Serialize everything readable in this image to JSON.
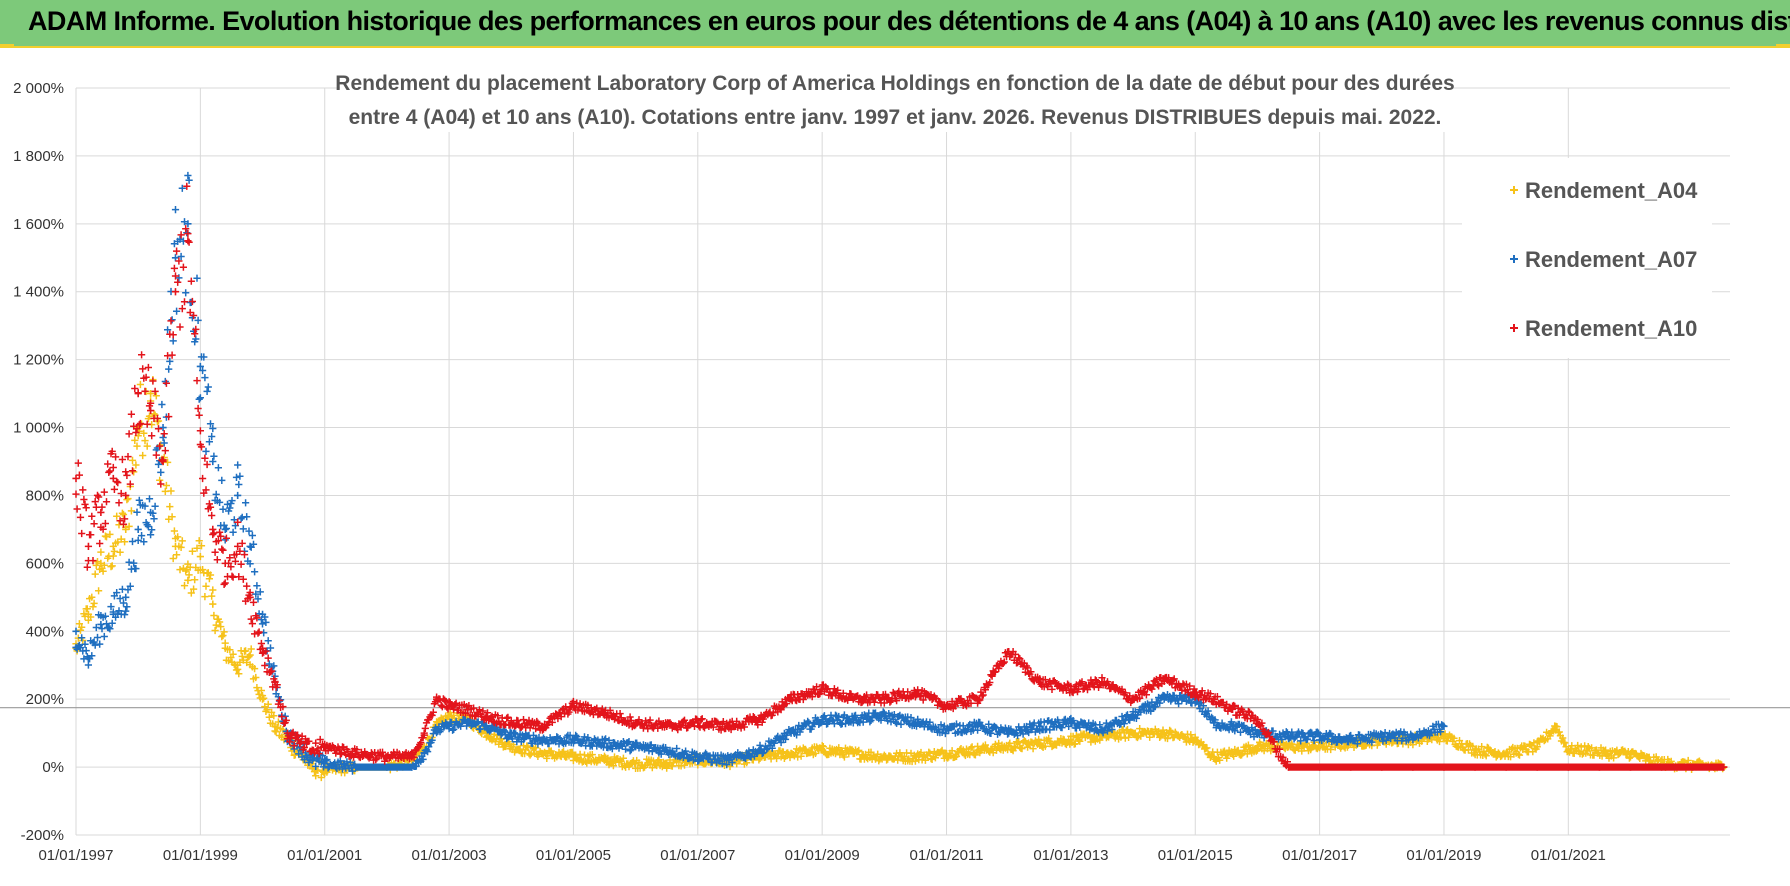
{
  "header": {
    "title": "ADAM Informe. Evolution historique des performances en euros pour des détentions de 4 ans (A04) à 10 ans (A10) avec les revenus connus distribués"
  },
  "colors": {
    "header_bg": "#7dc97a",
    "accent": "#f2cf2e",
    "A04": "#f6c21a",
    "A07": "#1f6fc0",
    "A10": "#e3141b",
    "grid": "#d9d9d9"
  },
  "chart_data": {
    "type": "scatter",
    "title_lines": [
      "Rendement du placement Laboratory Corp of America Holdings en fonction de la date de début pour des durées",
      "entre 4 (A04) et 10 ans (A10). Cotations entre janv. 1997 et janv. 2026. Revenus DISTRIBUES depuis mai. 2022."
    ],
    "xlabel": "",
    "ylabel": "",
    "x_range": [
      1997.0,
      2023.6
    ],
    "ylim": [
      -200,
      2000
    ],
    "y_ticks": [
      {
        "value": 2000,
        "label": "2 000%"
      },
      {
        "value": 1800,
        "label": "1 800%"
      },
      {
        "value": 1600,
        "label": "1 600%"
      },
      {
        "value": 1400,
        "label": "1 400%"
      },
      {
        "value": 1200,
        "label": "1 200%"
      },
      {
        "value": 1000,
        "label": "1 000%"
      },
      {
        "value": 800,
        "label": "800%"
      },
      {
        "value": 600,
        "label": "600%"
      },
      {
        "value": 400,
        "label": "400%"
      },
      {
        "value": 200,
        "label": "200%"
      },
      {
        "value": 0,
        "label": "0%"
      },
      {
        "value": -200,
        "label": "-200%"
      }
    ],
    "x_ticks": [
      {
        "value": 1997,
        "label": "01/01/1997"
      },
      {
        "value": 1999,
        "label": "01/01/1999"
      },
      {
        "value": 2001,
        "label": "01/01/2001"
      },
      {
        "value": 2003,
        "label": "01/01/2003"
      },
      {
        "value": 2005,
        "label": "01/01/2005"
      },
      {
        "value": 2007,
        "label": "01/01/2007"
      },
      {
        "value": 2009,
        "label": "01/01/2009"
      },
      {
        "value": 2011,
        "label": "01/01/2011"
      },
      {
        "value": 2013,
        "label": "01/01/2013"
      },
      {
        "value": 2015,
        "label": "01/01/2015"
      },
      {
        "value": 2017,
        "label": "01/01/2017"
      },
      {
        "value": 2019,
        "label": "01/01/2019"
      },
      {
        "value": 2021,
        "label": "01/01/2021"
      }
    ],
    "reference_line": 175,
    "grid": true,
    "legend": "top-right",
    "series": [
      {
        "name": "Rendement_A04",
        "color": "#f6c21a",
        "x": [
          1997.0,
          1997.2,
          1997.4,
          1997.6,
          1997.8,
          1998.0,
          1998.2,
          1998.4,
          1998.6,
          1998.8,
          1999.0,
          1999.2,
          1999.4,
          1999.6,
          1999.8,
          2000.0,
          2000.2,
          2000.4,
          2000.6,
          2000.8,
          2001.0,
          2001.5,
          2002.0,
          2002.4,
          2002.6,
          2002.8,
          2003.0,
          2003.3,
          2003.6,
          2004.0,
          2004.5,
          2005.0,
          2005.5,
          2006.0,
          2006.5,
          2007.0,
          2007.5,
          2008.0,
          2008.5,
          2009.0,
          2009.5,
          2010.0,
          2010.5,
          2011.0,
          2011.5,
          2012.0,
          2012.5,
          2013.0,
          2013.5,
          2014.0,
          2014.5,
          2015.0,
          2015.3,
          2015.6,
          2016.0,
          2016.5,
          2017.0,
          2017.5,
          2018.0,
          2018.5,
          2019.0,
          2019.5,
          2020.0,
          2020.5,
          2020.8,
          2021.0,
          2021.3,
          2021.6,
          2022.0,
          2022.3,
          2022.6,
          2023.0,
          2023.5
        ],
        "values": [
          350,
          450,
          600,
          650,
          700,
          1000,
          1100,
          900,
          650,
          550,
          620,
          480,
          350,
          300,
          330,
          200,
          120,
          80,
          40,
          0,
          -10,
          0,
          0,
          20,
          60,
          120,
          150,
          140,
          100,
          60,
          40,
          30,
          20,
          10,
          10,
          20,
          15,
          30,
          40,
          50,
          40,
          30,
          30,
          40,
          50,
          60,
          70,
          80,
          90,
          100,
          100,
          80,
          30,
          40,
          60,
          60,
          60,
          70,
          80,
          80,
          90,
          50,
          40,
          60,
          120,
          50,
          50,
          40,
          40,
          20,
          10,
          5,
          0
        ]
      },
      {
        "name": "Rendement_A07",
        "color": "#1f6fc0",
        "x": [
          1997.0,
          1997.2,
          1997.4,
          1997.6,
          1997.8,
          1998.0,
          1998.2,
          1998.4,
          1998.6,
          1998.8,
          1999.0,
          1999.2,
          1999.4,
          1999.6,
          1999.8,
          2000.0,
          2000.2,
          2000.4,
          2000.6,
          2000.8,
          2001.0,
          2001.5,
          2002.0,
          2002.4,
          2002.6,
          2002.8,
          2003.0,
          2003.3,
          2003.6,
          2004.0,
          2004.5,
          2005.0,
          2005.5,
          2006.0,
          2006.5,
          2007.0,
          2007.5,
          2008.0,
          2008.5,
          2009.0,
          2009.5,
          2010.0,
          2010.5,
          2011.0,
          2011.5,
          2012.0,
          2012.5,
          2013.0,
          2013.5,
          2014.0,
          2014.5,
          2015.0,
          2015.3,
          2015.6,
          2016.0,
          2016.5,
          2017.0,
          2017.5,
          2018.0,
          2018.5,
          2019.0
        ],
        "values": [
          400,
          320,
          420,
          450,
          500,
          700,
          750,
          1000,
          1500,
          1600,
          1180,
          900,
          700,
          800,
          650,
          450,
          250,
          100,
          60,
          20,
          10,
          0,
          0,
          0,
          40,
          110,
          120,
          130,
          120,
          90,
          80,
          80,
          70,
          60,
          50,
          30,
          20,
          50,
          100,
          140,
          140,
          150,
          130,
          110,
          120,
          100,
          120,
          130,
          110,
          150,
          200,
          200,
          130,
          120,
          100,
          90,
          90,
          80,
          90,
          90,
          120
        ]
      },
      {
        "name": "Rendement_A10",
        "color": "#e3141b",
        "x": [
          1997.0,
          1997.2,
          1997.4,
          1997.6,
          1997.8,
          1998.0,
          1998.2,
          1998.4,
          1998.6,
          1998.8,
          1999.0,
          1999.2,
          1999.4,
          1999.6,
          1999.8,
          2000.0,
          2000.2,
          2000.4,
          2000.6,
          2000.8,
          2001.0,
          2001.5,
          2002.0,
          2002.4,
          2002.6,
          2002.8,
          2003.0,
          2003.3,
          2003.6,
          2004.0,
          2004.5,
          2005.0,
          2005.5,
          2006.0,
          2006.5,
          2007.0,
          2007.5,
          2008.0,
          2008.5,
          2009.0,
          2009.5,
          2010.0,
          2010.5,
          2011.0,
          2011.5,
          2012.0,
          2012.5,
          2013.0,
          2013.5,
          2014.0,
          2014.5,
          2015.0,
          2015.3,
          2015.6,
          2016.0,
          2016.5,
          2017.0,
          2017.5,
          2018.0,
          2018.5,
          2019.0,
          2019.5,
          2020.0,
          2020.5,
          2021.0,
          2021.5,
          2022.0,
          2022.5,
          2023.0,
          2023.5
        ],
        "values": [
          850,
          650,
          750,
          850,
          800,
          1100,
          1050,
          900,
          1400,
          1550,
          950,
          700,
          600,
          650,
          500,
          350,
          250,
          100,
          70,
          50,
          60,
          40,
          30,
          30,
          100,
          200,
          180,
          170,
          150,
          130,
          120,
          180,
          160,
          130,
          120,
          130,
          120,
          140,
          200,
          230,
          200,
          200,
          220,
          180,
          200,
          340,
          250,
          230,
          250,
          200,
          260,
          220,
          200,
          170,
          140,
          0,
          0,
          0,
          0,
          0,
          0,
          0,
          0,
          0,
          0,
          0,
          0,
          0,
          0,
          0
        ]
      }
    ]
  }
}
